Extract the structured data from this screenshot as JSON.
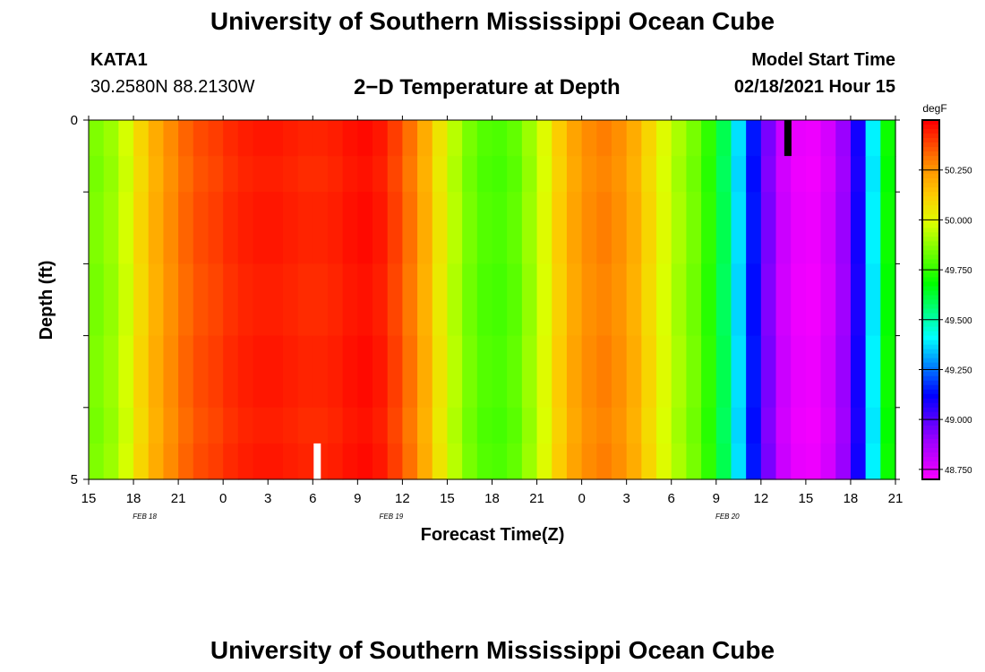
{
  "page": {
    "title": "University of Southern Mississippi Ocean Cube",
    "footer_title": "University of Southern Mississippi Ocean Cube"
  },
  "header": {
    "station": "KATA1",
    "coords": "30.2580N 88.2130W",
    "plot_title": "2−D Temperature at Depth",
    "model_start_label": "Model Start Time",
    "model_start_value": "02/18/2021 Hour 15"
  },
  "chart_data": {
    "type": "heatmap",
    "title": "2−D Temperature at Depth",
    "xlabel": "Forecast Time(Z)",
    "ylabel": "Depth (ft)",
    "units": "degF",
    "x_start_hour": 15,
    "x_hours": 54,
    "x_tick_labels": [
      "15",
      "18",
      "21",
      "0",
      "3",
      "6",
      "9",
      "12",
      "15",
      "18",
      "21",
      "0",
      "3",
      "6",
      "9",
      "12",
      "15",
      "18",
      "21"
    ],
    "date_labels": [
      {
        "label": "FEB 18",
        "hour_offset": 3.75
      },
      {
        "label": "FEB 19",
        "hour_offset": 20.25
      },
      {
        "label": "FEB 20",
        "hour_offset": 42.75
      }
    ],
    "ylim": [
      0,
      5
    ],
    "y_tick_labels": [
      "0",
      "5"
    ],
    "y_minor_ticks": [
      1,
      2,
      3,
      4
    ],
    "depth_layers": [
      0.5,
      1.0,
      2.0,
      3.0,
      4.0,
      4.5,
      5.0
    ],
    "temperature_by_hour": [
      49.86,
      49.9,
      49.98,
      50.1,
      50.2,
      50.28,
      50.34,
      50.38,
      50.4,
      50.43,
      50.45,
      50.46,
      50.46,
      50.45,
      50.44,
      50.44,
      50.45,
      50.47,
      50.48,
      50.46,
      50.4,
      50.32,
      50.2,
      50.06,
      49.94,
      49.85,
      49.8,
      49.79,
      49.82,
      49.9,
      50.0,
      50.12,
      50.22,
      50.28,
      50.3,
      50.27,
      50.2,
      50.1,
      50.0,
      49.92,
      49.85,
      49.75,
      49.6,
      49.38,
      49.15,
      48.95,
      48.8,
      48.74,
      48.73,
      48.78,
      48.9,
      49.1,
      49.4,
      49.7
    ],
    "colorbar_ticks": [
      48.75,
      49.0,
      49.25,
      49.5,
      49.75,
      50.0,
      50.25
    ],
    "colorbar_tick_labels": [
      "48.750",
      "49.000",
      "49.250",
      "49.500",
      "49.750",
      "50.000",
      "50.250"
    ],
    "colorbar_range": [
      48.7,
      50.5
    ],
    "markers": [
      {
        "color": "#ffffff",
        "hour_offset": 15.3,
        "depth_from": 4.5,
        "depth_to": 5.0
      },
      {
        "color": "#000000",
        "hour_offset": 46.8,
        "depth_from": 0.0,
        "depth_to": 0.5
      }
    ]
  }
}
